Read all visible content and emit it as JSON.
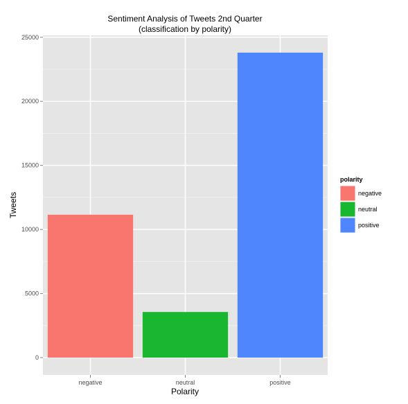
{
  "chart_data": {
    "type": "bar",
    "title": "Sentiment Analysis of Tweets 2nd Quarter",
    "subtitle": "(classification by polarity)",
    "xlabel": "Polarity",
    "ylabel": "Tweets",
    "categories": [
      "negative",
      "neutral",
      "positive"
    ],
    "values": [
      11150,
      3560,
      23800
    ],
    "colors": [
      "#f8766d",
      "#19b72f",
      "#4f86fd"
    ],
    "ylim": [
      -1350,
      25150
    ],
    "yticks": [
      0,
      5000,
      10000,
      15000,
      20000,
      25000
    ],
    "grid": true,
    "legend": {
      "title": "polarity",
      "placement": "right",
      "items": [
        "negative",
        "neutral",
        "positive"
      ]
    }
  }
}
